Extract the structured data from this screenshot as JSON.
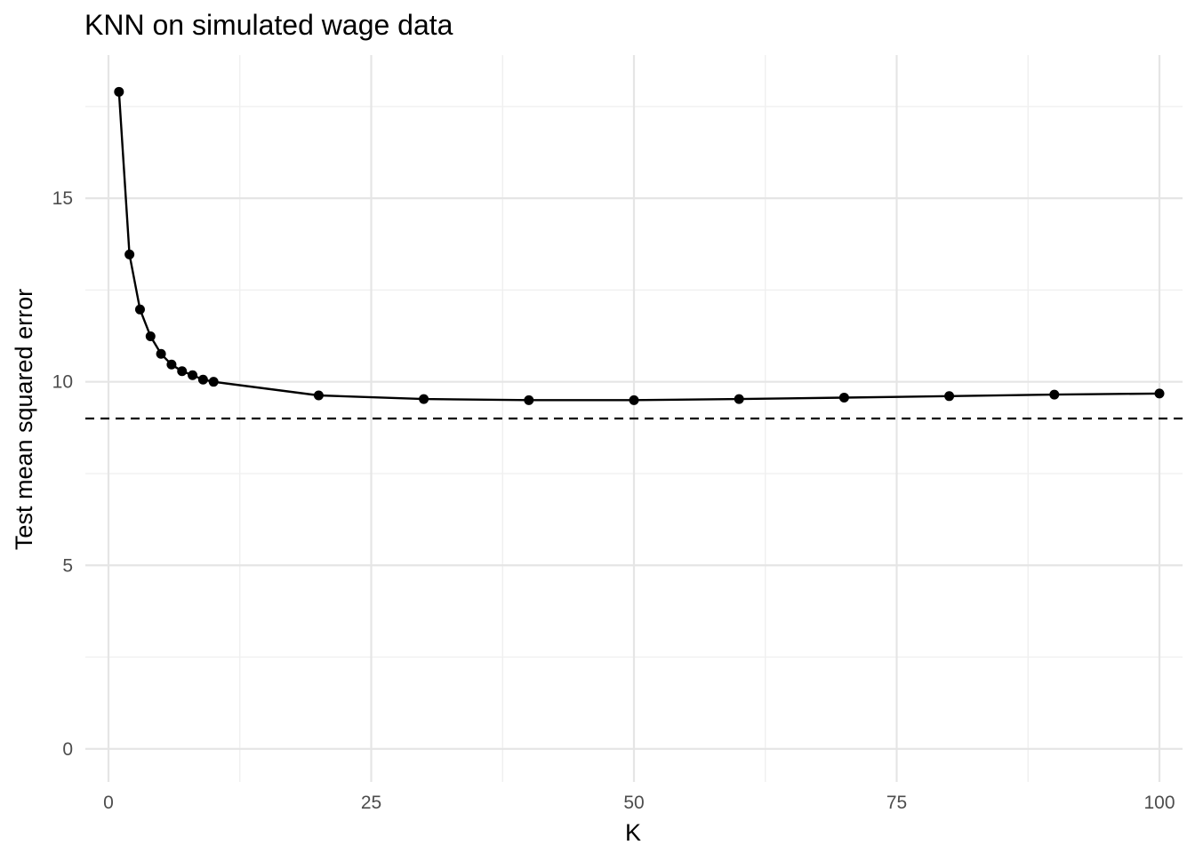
{
  "chart_data": {
    "type": "line",
    "title": "KNN on simulated wage data",
    "xlabel": "K",
    "ylabel": "Test mean squared error",
    "xlim": [
      -2.2,
      102.2
    ],
    "ylim": [
      -0.9,
      18.9
    ],
    "x_major_ticks": [
      0,
      25,
      50,
      75,
      100
    ],
    "x_minor_ticks": [
      12.5,
      37.5,
      62.5,
      87.5
    ],
    "y_major_ticks": [
      0,
      5,
      10,
      15
    ],
    "y_minor_ticks": [
      2.5,
      7.5,
      12.5,
      17.5
    ],
    "x_tick_labels": [
      "0",
      "25",
      "50",
      "75",
      "100"
    ],
    "y_tick_labels": [
      "0",
      "5",
      "10",
      "15"
    ],
    "grid": true,
    "series": [
      {
        "x": [
          1,
          2,
          3,
          4,
          5,
          6,
          7,
          8,
          9,
          10,
          20,
          30,
          40,
          50,
          60,
          70,
          80,
          90,
          100
        ],
        "y": [
          17.9,
          13.47,
          11.97,
          11.24,
          10.76,
          10.47,
          10.29,
          10.18,
          10.06,
          10.0,
          9.63,
          9.53,
          9.5,
          9.5,
          9.53,
          9.57,
          9.61,
          9.65,
          9.68
        ],
        "color": "#000000",
        "markers": true
      }
    ],
    "reference_line": {
      "y": 9.0,
      "style": "dashed",
      "color": "#000000"
    }
  }
}
